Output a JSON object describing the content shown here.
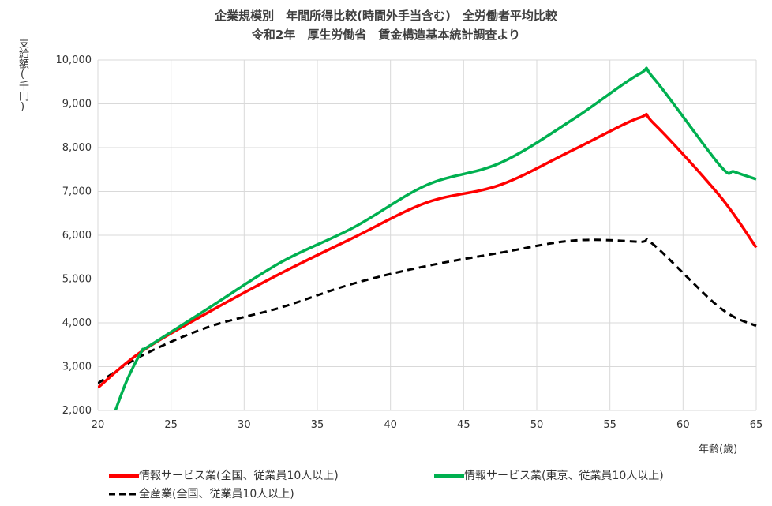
{
  "chart_data": {
    "type": "line",
    "title": "企業規模別　年間所得比較(時間外手当含む)　全労働者平均比較",
    "subtitle": "令和2年　厚生労働省　賃金構造基本統計調査より",
    "ylabel": "支給額(千円)",
    "xlabel": "年齢(歳)",
    "xlim": [
      20,
      65
    ],
    "ylim": [
      2000,
      10000
    ],
    "xticks": [
      20,
      25,
      30,
      35,
      40,
      45,
      50,
      55,
      60,
      65
    ],
    "yticks": [
      2000,
      3000,
      4000,
      5000,
      6000,
      7000,
      8000,
      9000,
      10000
    ],
    "ytick_labels": [
      "2,000",
      "3,000",
      "4,000",
      "5,000",
      "6,000",
      "7,000",
      "8,000",
      "9,000",
      "10,000"
    ],
    "grid": true,
    "legend_position": "bottom",
    "series": [
      {
        "name": "情報サービス業(全国、従業員10人以上)",
        "color": "#ff0000",
        "style": "solid",
        "points": [
          [
            20,
            2520
          ],
          [
            23,
            3350
          ],
          [
            27.5,
            4230
          ],
          [
            32.5,
            5130
          ],
          [
            37.5,
            5950
          ],
          [
            42.5,
            6750
          ],
          [
            47.5,
            7150
          ],
          [
            52.5,
            7950
          ],
          [
            57,
            8680
          ],
          [
            58,
            8550
          ],
          [
            62.5,
            6900
          ],
          [
            65,
            5720
          ]
        ]
      },
      {
        "name": "情報サービス業(東京、従業員10人以上)",
        "color": "#00b050",
        "style": "solid",
        "points": [
          [
            21.2,
            2000
          ],
          [
            22,
            2700
          ],
          [
            23,
            3350
          ],
          [
            23.5,
            3470
          ],
          [
            27.5,
            4320
          ],
          [
            32.5,
            5380
          ],
          [
            37.5,
            6180
          ],
          [
            42.5,
            7150
          ],
          [
            47.5,
            7650
          ],
          [
            52.5,
            8650
          ],
          [
            57,
            9680
          ],
          [
            58,
            9580
          ],
          [
            62.5,
            7600
          ],
          [
            63.5,
            7450
          ],
          [
            65,
            7280
          ]
        ]
      },
      {
        "name": "全産業(全国、従業員10人以上)",
        "color": "#000000",
        "style": "dashed",
        "points": [
          [
            20,
            2620
          ],
          [
            23,
            3250
          ],
          [
            27.5,
            3900
          ],
          [
            32.5,
            4350
          ],
          [
            37.5,
            4900
          ],
          [
            42.5,
            5300
          ],
          [
            47.5,
            5600
          ],
          [
            52.5,
            5880
          ],
          [
            57,
            5850
          ],
          [
            58,
            5780
          ],
          [
            62.5,
            4350
          ],
          [
            65,
            3930
          ]
        ]
      }
    ]
  }
}
